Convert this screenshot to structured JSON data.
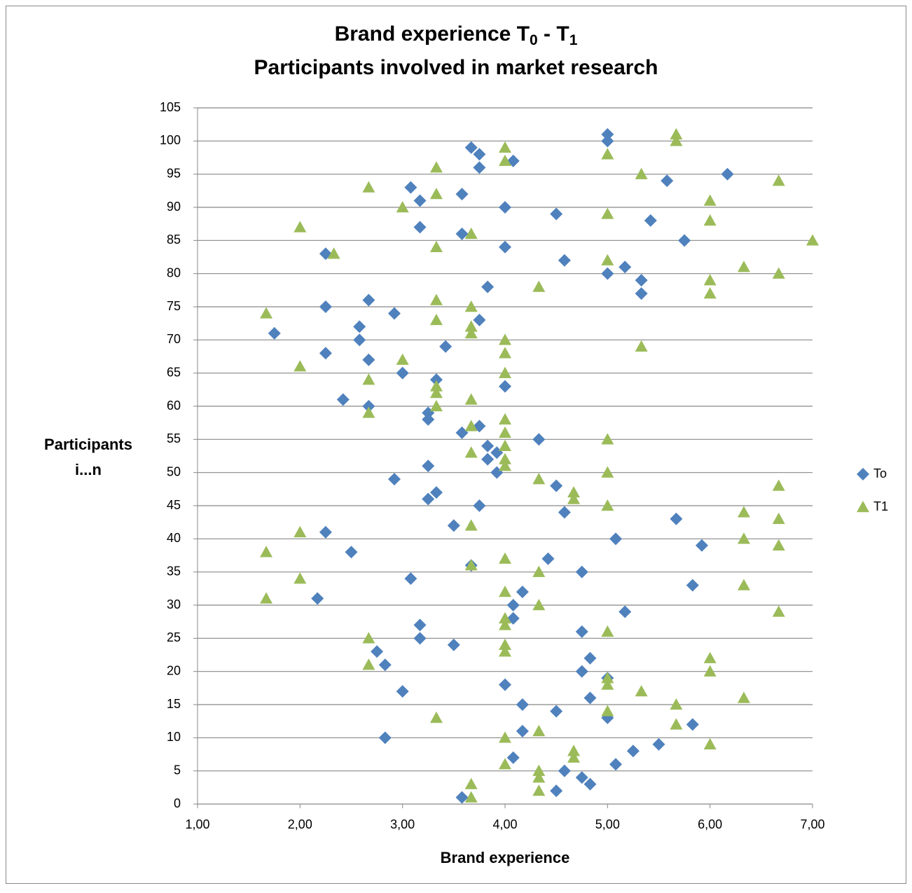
{
  "chart_data": {
    "type": "scatter",
    "title": [
      "Brand experience T",
      "0",
      " - T",
      "1"
    ],
    "subtitle": "Participants involved in market research",
    "xlabel": "Brand experience",
    "ylabel": [
      "Participants",
      "i...n"
    ],
    "xlim": [
      1,
      7
    ],
    "xticks": [
      {
        "value": 1,
        "label": "1,00"
      },
      {
        "value": 2,
        "label": "2,00"
      },
      {
        "value": 3,
        "label": "3,00"
      },
      {
        "value": 4,
        "label": "4,00"
      },
      {
        "value": 5,
        "label": "5,00"
      },
      {
        "value": 6,
        "label": "6,00"
      },
      {
        "value": 7,
        "label": "7,00"
      }
    ],
    "ylim": [
      0,
      105
    ],
    "yticks": [
      0,
      5,
      10,
      15,
      20,
      25,
      30,
      35,
      40,
      45,
      50,
      55,
      60,
      65,
      70,
      75,
      80,
      85,
      90,
      95,
      100,
      105
    ],
    "grid": true,
    "legend": "right",
    "series": [
      {
        "name": "To",
        "color": "#4f81bd",
        "marker": "diamond",
        "x": [
          3.58,
          4.5,
          4.83,
          4.75,
          4.58,
          5.08,
          4.08,
          5.25,
          5.5,
          2.83,
          4.17,
          5.83,
          5,
          4.5,
          4.17,
          4.83,
          3,
          4,
          5,
          4.75,
          2.83,
          4.83,
          2.75,
          3.5,
          3.17,
          4.75,
          3.17,
          4.08,
          5.17,
          4.08,
          2.17,
          4.17,
          5.83,
          3.08,
          4.75,
          3.67,
          4.42,
          2.5,
          5.92,
          5.08,
          2.25,
          3.5,
          5.67,
          4.58,
          3.75,
          3.25,
          3.33,
          4.5,
          2.92,
          3.92,
          3.25,
          3.83,
          3.92,
          3.83,
          4.33,
          3.58,
          3.75,
          3.25,
          3.25,
          2.67,
          2.42,
          4,
          3.33,
          3,
          2.67,
          2.25,
          3.42,
          2.58,
          1.75,
          2.58,
          3.75,
          2.92,
          2.25,
          2.67,
          5.33,
          3.83,
          5.33,
          5,
          5.17,
          4.58,
          2.25,
          4,
          5.75,
          3.58,
          3.17,
          5.42,
          4.5,
          4,
          3.17,
          3.58,
          3.08,
          5.58,
          6.17,
          3.75,
          4.08,
          3.75,
          3.67,
          5,
          5
        ],
        "values": [
          1,
          2,
          3,
          4,
          5,
          6,
          7,
          8,
          9,
          10,
          11,
          12,
          13,
          14,
          15,
          16,
          17,
          18,
          19,
          20,
          21,
          22,
          23,
          24,
          25,
          26,
          27,
          28,
          29,
          30,
          31,
          32,
          33,
          34,
          35,
          36,
          37,
          38,
          39,
          40,
          41,
          42,
          43,
          44,
          45,
          46,
          47,
          48,
          49,
          50,
          51,
          52,
          53,
          54,
          55,
          56,
          57,
          58,
          59,
          60,
          61,
          63,
          64,
          65,
          67,
          68,
          69,
          70,
          71,
          72,
          73,
          74,
          75,
          76,
          77,
          78,
          79,
          80,
          81,
          82,
          83,
          84,
          85,
          86,
          87,
          88,
          89,
          90,
          91,
          92,
          93,
          94,
          95,
          96,
          97,
          98,
          99,
          100,
          101
        ]
      },
      {
        "name": "T1",
        "color": "#9bbb59",
        "marker": "triangle",
        "x": [
          3.67,
          4.33,
          3.67,
          4.33,
          4.33,
          4,
          4.67,
          4.67,
          6,
          4,
          4.33,
          5.67,
          3.33,
          5,
          5.67,
          6.33,
          5.33,
          5,
          5,
          6,
          2.67,
          6,
          4,
          4,
          2.67,
          5,
          4,
          4,
          6.67,
          4.33,
          1.67,
          4,
          6.33,
          2,
          4.33,
          3.67,
          4,
          1.67,
          6.67,
          6.33,
          2,
          3.67,
          6.67,
          6.33,
          5,
          4.67,
          4.67,
          6.67,
          4.33,
          5,
          4,
          4,
          3.67,
          4,
          5,
          4,
          3.67,
          4,
          2.67,
          3.33,
          3.67,
          3.33,
          3.33,
          2.67,
          4,
          2,
          3,
          4,
          5.33,
          4,
          3.67,
          3.67,
          3.33,
          1.67,
          3.67,
          3.33,
          6,
          4.33,
          6,
          6.67,
          6.33,
          5,
          2.33,
          3.33,
          7,
          3.67,
          2,
          6,
          5,
          3,
          6,
          3.33,
          2.67,
          6.67,
          5.33,
          3.33,
          4,
          5,
          4,
          5.67,
          5.67
        ],
        "values": [
          1,
          2,
          3,
          4,
          5,
          6,
          7,
          8,
          9,
          10,
          11,
          12,
          13,
          14,
          15,
          16,
          17,
          18,
          19,
          20,
          21,
          22,
          23,
          24,
          25,
          26,
          27,
          28,
          29,
          30,
          31,
          32,
          33,
          34,
          35,
          36,
          37,
          38,
          39,
          40,
          41,
          42,
          43,
          44,
          45,
          46,
          47,
          48,
          49,
          50,
          51,
          52,
          53,
          54,
          55,
          56,
          57,
          58,
          59,
          60,
          61,
          62,
          63,
          64,
          65,
          66,
          67,
          68,
          69,
          70,
          71,
          72,
          73,
          74,
          75,
          76,
          77,
          78,
          79,
          80,
          81,
          82,
          83,
          84,
          85,
          86,
          87,
          88,
          89,
          90,
          91,
          92,
          93,
          94,
          95,
          96,
          97,
          98,
          99,
          100,
          101
        ]
      }
    ]
  }
}
